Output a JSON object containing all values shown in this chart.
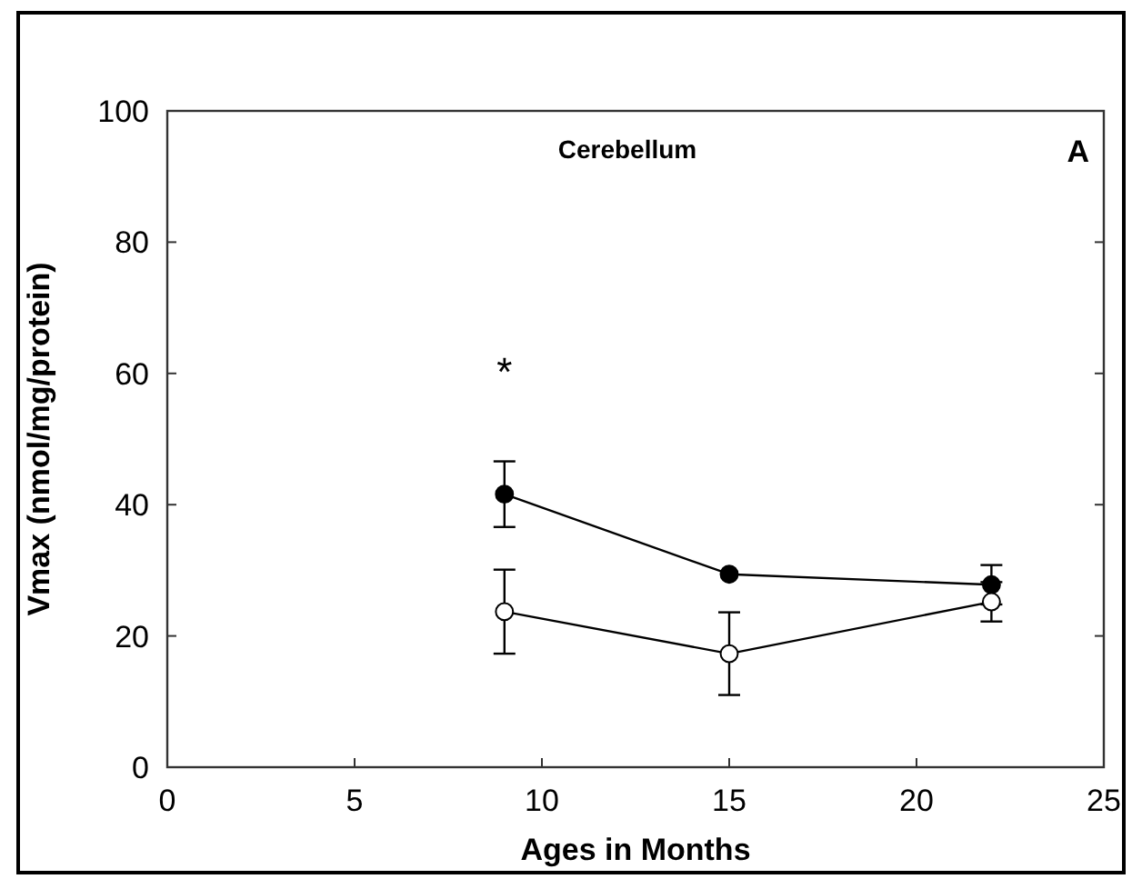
{
  "chart_data": {
    "type": "line",
    "title": "Cerebellum",
    "xlabel": "Ages in Months",
    "ylabel": "Vmax (nmol/mg/protein)",
    "x": [
      9,
      15,
      22
    ],
    "series": [
      {
        "color": "#000000",
        "values": [
          41.6,
          29.4,
          27.8
        ],
        "errors": [
          5,
          null,
          3
        ]
      },
      {
        "color": "#ffffff",
        "values": [
          23.7,
          17.3,
          25.2
        ],
        "errors": [
          6.4,
          6.3,
          3
        ]
      }
    ],
    "xlim": [
      0,
      25
    ],
    "xticks": [
      0,
      5,
      10,
      15,
      20,
      25
    ],
    "ylim": [
      0,
      100
    ],
    "yticks": [
      0,
      20,
      40,
      60,
      80,
      100
    ],
    "marker": "circle",
    "line_style": "solid",
    "annotations": [
      "*",
      "A"
    ]
  }
}
